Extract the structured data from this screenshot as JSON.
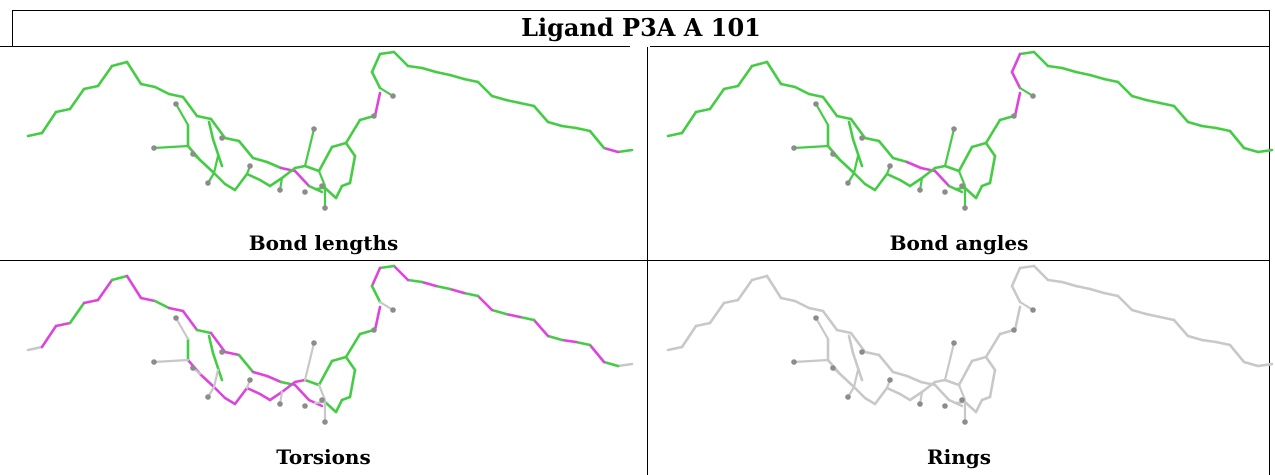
{
  "title": "Ligand P3A A 101",
  "colors": {
    "ok": "#44cc44",
    "outlier": "#dd44dd",
    "neutral": "#c8c8c8",
    "atom": "#8c8c8c",
    "grid": "#000000"
  },
  "panels": [
    {
      "id": "bond-lengths",
      "caption": "Bond lengths",
      "mode": "lengths"
    },
    {
      "id": "bond-angles",
      "caption": "Bond angles",
      "mode": "angles"
    },
    {
      "id": "torsions",
      "caption": "Torsions",
      "mode": "torsions"
    },
    {
      "id": "rings",
      "caption": "Rings",
      "mode": "rings"
    }
  ]
}
